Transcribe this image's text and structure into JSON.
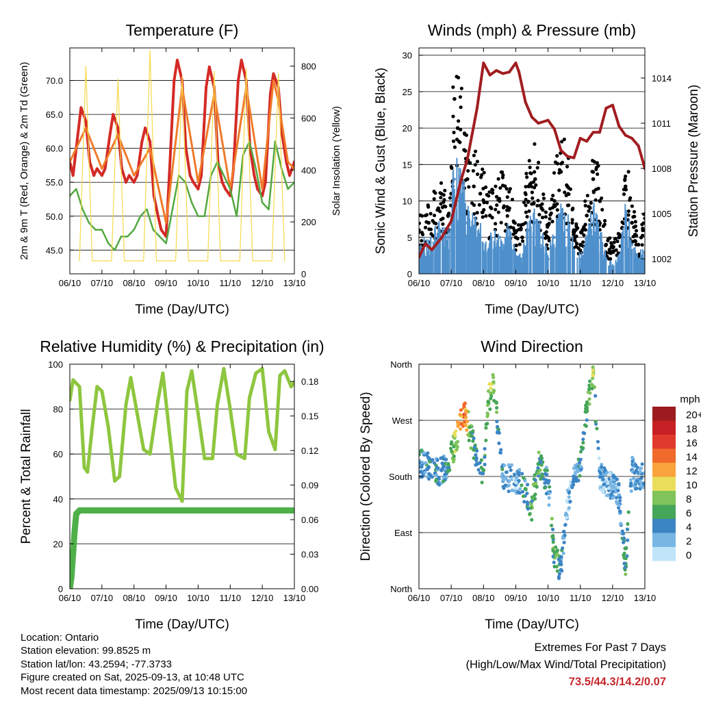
{
  "x_tick_labels": [
    "06/10",
    "07/10",
    "08/10",
    "09/10",
    "10/10",
    "11/10",
    "12/10",
    "13/10"
  ],
  "panels": {
    "temperature": {
      "title": "Temperature (F)",
      "xlabel": "Time (Day/UTC)",
      "ylabel_left": "2m & 9m T (Red, Orange) & 2m Td (Green)",
      "ylabel_right": "Solar Insolation (Yellow)",
      "left_ticks": [
        "45.0",
        "50.0",
        "55.0",
        "60.0",
        "65.0",
        "70.0"
      ],
      "right_ticks": [
        "0",
        "200",
        "400",
        "600",
        "800"
      ]
    },
    "winds": {
      "title": "Winds (mph) & Pressure (mb)",
      "xlabel": "Time (Day/UTC)",
      "ylabel_left": "Sonic Wind & Gust (Blue, Black)",
      "ylabel_right": "Station Pressure (Maroon)",
      "left_ticks": [
        "0",
        "5",
        "10",
        "15",
        "20",
        "25",
        "30"
      ],
      "right_ticks": [
        "1002",
        "1005",
        "1008",
        "1011",
        "1014"
      ]
    },
    "humidity": {
      "title": "Relative Humidity (%) & Precipitation (in)",
      "xlabel": "Time (Day/UTC)",
      "ylabel_left": "Percent & Total Rainfall",
      "left_ticks": [
        "0",
        "20",
        "40",
        "60",
        "80",
        "100"
      ],
      "right_ticks": [
        "0.00",
        "0.03",
        "0.06",
        "0.09",
        "0.12",
        "0.15",
        "0.18"
      ]
    },
    "wind_direction": {
      "title": "Wind Direction",
      "xlabel": "Time (Day/UTC)",
      "ylabel_left": "Direction (Colored By Speed)",
      "left_ticks": [
        "North",
        "East",
        "South",
        "West",
        "North"
      ],
      "legend_title": "mph",
      "legend_labels": [
        "20+",
        "18",
        "16",
        "14",
        "12",
        "10",
        "8",
        "6",
        "4",
        "2",
        "0"
      ],
      "legend_colors": [
        "#9b1b1e",
        "#c62025",
        "#e03a2c",
        "#f06a2b",
        "#f9a33c",
        "#e9de5a",
        "#7fc45a",
        "#45a558",
        "#3c85c4",
        "#78b6e4",
        "#c0e4f8"
      ]
    }
  },
  "info": {
    "location": "Location: Ontario",
    "elevation": "Station elevation: 99.8525 m",
    "latlon": "Station lat/lon: 43.2594; -77.3733",
    "created": "Figure created on Sat, 2025-09-13, at 10:48 UTC",
    "recent": "Most recent data timestamp: 2025/09/13 10:15:00"
  },
  "extremes": {
    "line1": "Extremes For Past 7 Days",
    "line2": "(High/Low/Max Wind/Total Precipitation)",
    "values": "73.5/44.3/14.2/0.07"
  },
  "chart_data": [
    {
      "type": "line",
      "title": "Temperature (F)",
      "xlabel": "Time (Day/UTC)",
      "x_unit": "days since 06/10 00 UTC",
      "ylim": [
        41.5,
        74.8
      ],
      "y2lim": [
        0,
        870
      ],
      "series": [
        {
          "name": "2m T",
          "color": "#d42a25",
          "axis": "left",
          "x": [
            0,
            0.1,
            0.25,
            0.35,
            0.5,
            0.62,
            0.75,
            0.85,
            1.0,
            1.1,
            1.25,
            1.35,
            1.5,
            1.62,
            1.75,
            1.85,
            2.0,
            2.1,
            2.25,
            2.35,
            2.5,
            2.62,
            2.75,
            2.85,
            3.0,
            3.1,
            3.25,
            3.35,
            3.5,
            3.62,
            3.75,
            3.85,
            4.0,
            4.1,
            4.25,
            4.35,
            4.5,
            4.62,
            4.75,
            4.85,
            5.0,
            5.1,
            5.25,
            5.35,
            5.5,
            5.62,
            5.75,
            5.85,
            6.0,
            6.1,
            6.25,
            6.35,
            6.5,
            6.62,
            6.75,
            6.85,
            7.0
          ],
          "y": [
            58,
            56,
            62,
            66,
            64,
            58,
            56,
            57,
            56,
            57,
            62,
            65,
            63,
            57,
            55,
            56,
            55,
            56,
            61,
            63,
            61,
            53,
            50,
            48,
            47,
            56,
            70,
            73,
            70,
            60,
            56,
            55,
            54,
            56,
            69,
            72,
            69,
            58,
            55,
            54,
            53,
            57,
            70,
            73,
            70,
            60,
            56,
            54,
            53,
            55,
            68,
            71,
            69,
            62,
            58,
            56,
            58
          ]
        },
        {
          "name": "9m T",
          "color": "#f07a2a",
          "axis": "left",
          "x": [
            0,
            0.5,
            1.0,
            1.5,
            2.0,
            2.5,
            3.0,
            3.5,
            4.0,
            4.5,
            5.0,
            5.5,
            6.0,
            6.35,
            6.5,
            6.8,
            7.0
          ],
          "y": [
            58,
            63,
            57,
            62,
            56,
            60,
            49,
            69,
            55,
            68,
            54,
            69,
            54,
            70,
            67,
            58,
            57
          ]
        },
        {
          "name": "2m Td",
          "color": "#52a83f",
          "axis": "left",
          "x": [
            0,
            0.2,
            0.4,
            0.6,
            0.8,
            1.0,
            1.2,
            1.4,
            1.6,
            1.8,
            2.0,
            2.2,
            2.4,
            2.6,
            2.8,
            3.0,
            3.2,
            3.4,
            3.6,
            3.8,
            4.0,
            4.2,
            4.4,
            4.6,
            4.8,
            5.0,
            5.2,
            5.4,
            5.6,
            5.8,
            6.0,
            6.2,
            6.4,
            6.6,
            6.8,
            7.0
          ],
          "y": [
            53,
            54,
            51,
            49,
            48,
            48,
            46,
            45,
            47,
            47,
            48,
            50,
            51,
            48,
            47,
            46,
            51,
            56,
            55,
            52,
            50,
            50,
            56,
            58,
            56,
            54,
            50,
            59,
            61,
            57,
            52,
            51,
            61,
            57,
            54,
            55
          ]
        },
        {
          "name": "Solar Insolation",
          "color": "#f5d94a",
          "axis": "right",
          "x": [
            0.3,
            0.5,
            0.7,
            1.3,
            1.5,
            1.7,
            2.3,
            2.5,
            2.7,
            3.3,
            3.5,
            3.7,
            4.3,
            4.5,
            4.7,
            5.3,
            5.5,
            5.7,
            6.3,
            6.5,
            6.7
          ],
          "y": [
            50,
            800,
            50,
            50,
            750,
            50,
            50,
            860,
            50,
            50,
            760,
            50,
            50,
            780,
            50,
            50,
            790,
            50,
            50,
            770,
            50
          ]
        }
      ]
    },
    {
      "type": "line",
      "title": "Winds (mph) & Pressure (mb)",
      "xlabel": "Time (Day/UTC)",
      "x_unit": "days since 06/10 00 UTC",
      "ylim": [
        0,
        31
      ],
      "y2lim": [
        1001.0,
        1016.0
      ],
      "series": [
        {
          "name": "Gust",
          "color": "#000000",
          "axis": "left",
          "x": [
            0,
            0.3,
            0.6,
            0.9,
            1.0,
            1.1,
            1.2,
            1.4,
            1.5,
            1.7,
            1.9,
            2.2,
            2.5,
            2.8,
            3.0,
            3.2,
            3.4,
            3.6,
            3.8,
            4.0,
            4.2,
            4.4,
            4.6,
            4.8,
            5.0,
            5.2,
            5.4,
            5.6,
            5.8,
            6.0,
            6.2,
            6.4,
            6.6,
            6.8,
            7.0
          ],
          "y": [
            6,
            7,
            9,
            8,
            11,
            24,
            20,
            17,
            13,
            12,
            11,
            8,
            10,
            9,
            5,
            5,
            12,
            13,
            9,
            5,
            10,
            14,
            12,
            6,
            4,
            8,
            13,
            10,
            4,
            3,
            5,
            12,
            7,
            4,
            6
          ]
        },
        {
          "name": "Wind",
          "color": "#4f90cc",
          "axis": "left",
          "x": [
            0,
            0.3,
            0.6,
            0.9,
            1.0,
            1.1,
            1.2,
            1.4,
            1.5,
            1.7,
            1.9,
            2.2,
            2.5,
            2.8,
            3.0,
            3.2,
            3.4,
            3.6,
            3.8,
            4.0,
            4.2,
            4.4,
            4.6,
            4.8,
            5.0,
            5.2,
            5.4,
            5.6,
            5.8,
            6.0,
            6.2,
            6.4,
            6.6,
            6.8,
            7.0
          ],
          "y": [
            3,
            4,
            5,
            5,
            8,
            13,
            11,
            9,
            7,
            6,
            5,
            4,
            5,
            5,
            2,
            2,
            6,
            7,
            5,
            2,
            5,
            7,
            6,
            3,
            2,
            4,
            7,
            5,
            2,
            1,
            2,
            7,
            4,
            2,
            3
          ]
        },
        {
          "name": "Station Pressure",
          "color": "#a11d21",
          "axis": "right",
          "x": [
            0,
            0.2,
            0.4,
            0.7,
            1.0,
            1.3,
            1.5,
            1.8,
            2.0,
            2.2,
            2.4,
            2.6,
            2.8,
            3.0,
            3.1,
            3.3,
            3.5,
            3.7,
            4.0,
            4.2,
            4.4,
            4.6,
            4.8,
            5.0,
            5.2,
            5.4,
            5.6,
            5.8,
            6.0,
            6.2,
            6.4,
            6.6,
            6.8,
            7.0
          ],
          "y": [
            1002.1,
            1003.0,
            1002.6,
            1003.4,
            1004.5,
            1007.2,
            1008.6,
            1012.0,
            1015.0,
            1014.2,
            1014.5,
            1014.3,
            1014.4,
            1015.0,
            1014.4,
            1012.4,
            1011.4,
            1011.0,
            1011.2,
            1010.6,
            1009.2,
            1008.8,
            1008.7,
            1010.0,
            1009.8,
            1010.4,
            1010.4,
            1012.0,
            1012.2,
            1010.8,
            1010.2,
            1010.0,
            1009.5,
            1008.0
          ]
        }
      ]
    },
    {
      "type": "line",
      "title": "Relative Humidity (%) & Precipitation (in)",
      "xlabel": "Time (Day/UTC)",
      "x_unit": "days since 06/10 00 UTC",
      "ylim": [
        0,
        100
      ],
      "y2lim": [
        0,
        0.195
      ],
      "series": [
        {
          "name": "RH",
          "color": "#8ec63f",
          "axis": "left",
          "x": [
            0,
            0.1,
            0.3,
            0.45,
            0.55,
            0.7,
            0.85,
            1.0,
            1.2,
            1.4,
            1.55,
            1.75,
            1.9,
            2.1,
            2.3,
            2.5,
            2.75,
            2.9,
            3.1,
            3.3,
            3.5,
            3.65,
            3.8,
            4.0,
            4.2,
            4.45,
            4.6,
            4.8,
            5.0,
            5.2,
            5.45,
            5.6,
            5.8,
            6.0,
            6.2,
            6.4,
            6.55,
            6.7,
            6.9,
            7.0
          ],
          "y": [
            84,
            93,
            90,
            54,
            52,
            72,
            90,
            88,
            72,
            48,
            50,
            82,
            94,
            78,
            62,
            60,
            84,
            96,
            70,
            45,
            39,
            88,
            97,
            78,
            58,
            58,
            82,
            98,
            80,
            60,
            58,
            85,
            96,
            98,
            70,
            62,
            95,
            97,
            90,
            92
          ]
        },
        {
          "name": "Total Rainfall",
          "color": "#4fb04a",
          "axis": "right",
          "x": [
            0,
            0.05,
            0.1,
            0.15,
            0.2,
            0.3,
            7.0
          ],
          "y": [
            0,
            0.01,
            0.03,
            0.05,
            0.065,
            0.068,
            0.068
          ]
        }
      ]
    },
    {
      "type": "scatter",
      "title": "Wind Direction",
      "xlabel": "Time (Day/UTC)",
      "x_unit": "days since 06/10 00 UTC",
      "y_unit": "degrees",
      "ylim": [
        0,
        360
      ],
      "series": [
        {
          "name": "direction",
          "x": [
            0.1,
            0.3,
            0.5,
            0.7,
            0.9,
            1.1,
            1.3,
            1.4,
            1.6,
            1.8,
            2.0,
            2.15,
            2.3,
            2.6,
            3.0,
            3.3,
            3.5,
            3.7,
            4.0,
            4.2,
            4.4,
            4.6,
            4.8,
            5.0,
            5.2,
            5.4,
            5.6,
            5.8,
            6.0,
            6.2,
            6.4,
            6.6,
            6.8,
            7.0
          ],
          "y": [
            200,
            195,
            185,
            190,
            200,
            230,
            265,
            290,
            250,
            200,
            190,
            300,
            330,
            180,
            175,
            160,
            130,
            200,
            170,
            50,
            30,
            140,
            175,
            190,
            290,
            350,
            180,
            170,
            165,
            150,
            40,
            190,
            175,
            185
          ],
          "speed": [
            4,
            3,
            4,
            3,
            5,
            8,
            12,
            14,
            6,
            4,
            5,
            7,
            8,
            3,
            2,
            5,
            7,
            6,
            3,
            7,
            4,
            2,
            3,
            4,
            6,
            8,
            2,
            2,
            3,
            2,
            6,
            3,
            3,
            4
          ]
        }
      ]
    }
  ]
}
